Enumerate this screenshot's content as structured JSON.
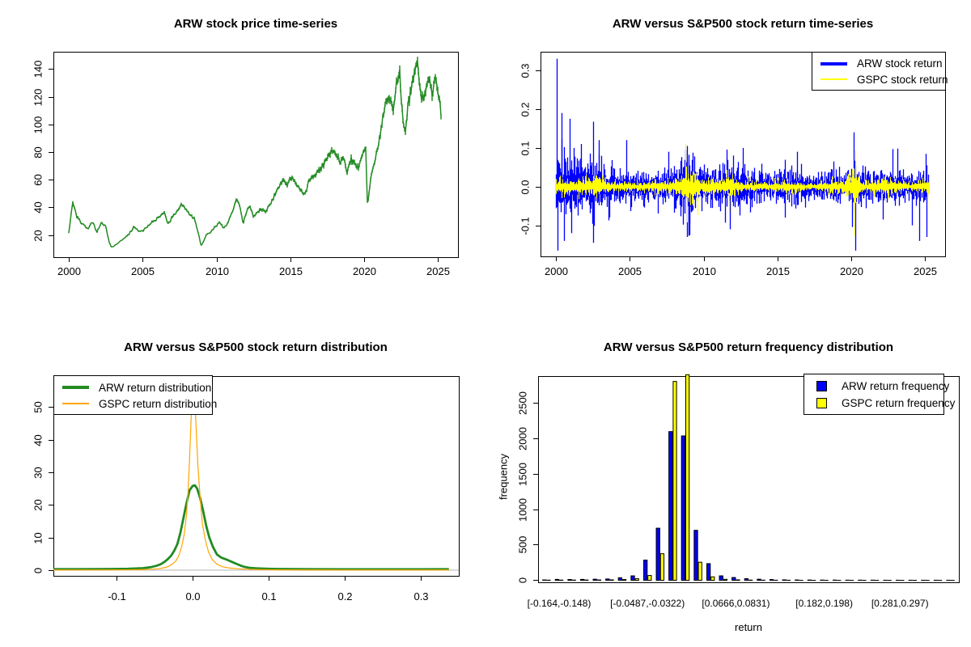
{
  "figure": {
    "background": "#ffffff",
    "rows": 2,
    "cols": 2
  },
  "chart_data": [
    {
      "id": "price",
      "type": "line",
      "title": "ARW stock price time-series",
      "xlabel": "",
      "ylabel": "",
      "x_ticks": [
        2000,
        2005,
        2010,
        2015,
        2020,
        2025
      ],
      "x_tick_labels": [
        "2000",
        "2005",
        "2010",
        "2015",
        "2020",
        "2025"
      ],
      "y_ticks": [
        20,
        40,
        60,
        80,
        100,
        120,
        140
      ],
      "y_tick_labels": [
        "20",
        "40",
        "60",
        "80",
        "100",
        "120",
        "140"
      ],
      "xlim": [
        1998.95,
        2026.35
      ],
      "ylim": [
        4,
        152.5
      ],
      "grid": false,
      "series": [
        {
          "name": "ARW price",
          "color": "#228B22",
          "seed": 7,
          "noise_rel": 0.028,
          "anchors_x": [
            2000.0,
            2000.25,
            2000.5,
            2000.75,
            2001.0,
            2001.3,
            2001.6,
            2001.9,
            2002.2,
            2002.5,
            2002.75,
            2002.9,
            2003.2,
            2003.5,
            2003.8,
            2004.1,
            2004.4,
            2004.7,
            2005.0,
            2005.3,
            2005.6,
            2005.9,
            2006.2,
            2006.45,
            2006.7,
            2007.0,
            2007.3,
            2007.6,
            2007.9,
            2008.2,
            2008.5,
            2008.8,
            2008.95,
            2009.1,
            2009.3,
            2009.6,
            2009.9,
            2010.2,
            2010.5,
            2010.8,
            2011.1,
            2011.35,
            2011.6,
            2011.8,
            2012.0,
            2012.25,
            2012.5,
            2012.75,
            2013.0,
            2013.3,
            2013.6,
            2013.9,
            2014.2,
            2014.5,
            2014.8,
            2015.1,
            2015.4,
            2015.7,
            2016.0,
            2016.3,
            2016.6,
            2016.9,
            2017.2,
            2017.5,
            2017.8,
            2018.1,
            2018.35,
            2018.6,
            2018.85,
            2019.1,
            2019.35,
            2019.6,
            2019.9,
            2020.1,
            2020.22,
            2020.45,
            2020.7,
            2020.95,
            2021.2,
            2021.45,
            2021.7,
            2021.95,
            2022.2,
            2022.4,
            2022.6,
            2022.8,
            2023.0,
            2023.2,
            2023.45,
            2023.6,
            2023.8,
            2024.0,
            2024.2,
            2024.4,
            2024.6,
            2024.8,
            2025.0,
            2025.2
          ],
          "anchors_y": [
            22,
            44,
            34,
            30,
            27,
            24,
            30,
            22,
            29,
            26,
            14,
            11,
            13,
            16,
            18,
            21,
            26,
            23,
            23,
            26,
            29,
            31,
            34,
            37,
            28,
            33,
            37,
            42,
            39,
            35,
            32,
            20,
            12,
            15,
            20,
            22,
            26,
            29,
            25,
            30,
            38,
            46,
            40,
            28,
            36,
            41,
            33,
            36,
            39,
            37,
            42,
            48,
            55,
            60,
            57,
            62,
            57,
            52,
            50,
            60,
            63,
            66,
            70,
            76,
            81,
            79,
            73,
            77,
            65,
            75,
            72,
            68,
            80,
            84,
            41,
            62,
            72,
            85,
            100,
            115,
            122,
            112,
            130,
            136,
            104,
            96,
            118,
            126,
            140,
            146,
            122,
            118,
            128,
            133,
            120,
            136,
            125,
            108
          ]
        }
      ]
    },
    {
      "id": "returns",
      "type": "line",
      "title": "ARW versus S&P500 stock return time-series",
      "xlabel": "",
      "ylabel": "",
      "x_ticks": [
        2000,
        2005,
        2010,
        2015,
        2020,
        2025
      ],
      "x_tick_labels": [
        "2000",
        "2005",
        "2010",
        "2015",
        "2020",
        "2025"
      ],
      "y_ticks": [
        -0.1,
        0.0,
        0.1,
        0.2,
        0.3
      ],
      "y_tick_labels": [
        "-0.1",
        "0.0",
        "0.1",
        "0.2",
        "0.3"
      ],
      "xlim": [
        1998.95,
        2026.35
      ],
      "ylim": [
        -0.18,
        0.348
      ],
      "grid": false,
      "legend": {
        "position": "topright",
        "entries": [
          {
            "label": "ARW stock return",
            "color": "#0000FF",
            "lw": 4,
            "shape": "line"
          },
          {
            "label": "GSPC stock return",
            "color": "#FFFF00",
            "lw": 2,
            "shape": "line"
          }
        ]
      },
      "series": [
        {
          "name": "ARW stock return",
          "color": "#0000FF",
          "seed": 11,
          "line_width": 1.3,
          "envelope_x": [
            2000,
            2000.5,
            2001,
            2001.5,
            2002,
            2002.5,
            2003,
            2003.5,
            2004,
            2004.5,
            2005,
            2005.5,
            2006,
            2006.5,
            2007,
            2007.5,
            2008,
            2008.5,
            2008.9,
            2009.2,
            2009.5,
            2010,
            2010.5,
            2011,
            2011.5,
            2011.9,
            2012.3,
            2012.8,
            2013.3,
            2013.8,
            2014.3,
            2014.8,
            2015.3,
            2015.8,
            2016.2,
            2016.7,
            2017.2,
            2017.7,
            2018.2,
            2018.7,
            2019.2,
            2019.7,
            2020.2,
            2020.6,
            2021,
            2021.5,
            2022,
            2022.5,
            2023,
            2023.5,
            2024,
            2024.5,
            2025,
            2025.2
          ],
          "envelope_y": [
            0.052,
            0.055,
            0.05,
            0.045,
            0.045,
            0.05,
            0.04,
            0.032,
            0.028,
            0.03,
            0.024,
            0.022,
            0.024,
            0.022,
            0.022,
            0.028,
            0.035,
            0.045,
            0.06,
            0.055,
            0.04,
            0.032,
            0.035,
            0.03,
            0.035,
            0.042,
            0.035,
            0.03,
            0.026,
            0.024,
            0.022,
            0.024,
            0.026,
            0.028,
            0.032,
            0.026,
            0.02,
            0.02,
            0.028,
            0.03,
            0.026,
            0.022,
            0.045,
            0.032,
            0.026,
            0.024,
            0.028,
            0.032,
            0.028,
            0.024,
            0.022,
            0.024,
            0.026,
            0.028
          ],
          "spikes": [
            [
              2000.07,
              0.33
            ],
            [
              2000.12,
              -0.165
            ],
            [
              2000.4,
              0.19
            ],
            [
              2000.55,
              -0.14
            ],
            [
              2000.9,
              0.175
            ],
            [
              2001.05,
              -0.12
            ],
            [
              2001.7,
              0.11
            ],
            [
              2002.5,
              -0.145
            ],
            [
              2002.9,
              0.12
            ],
            [
              2004.75,
              0.12
            ],
            [
              2007.6,
              0.09
            ],
            [
              2008.75,
              0.095
            ],
            [
              2008.85,
              -0.13
            ],
            [
              2009.05,
              -0.125
            ],
            [
              2011.8,
              -0.11
            ],
            [
              2012.0,
              0.08
            ],
            [
              2015.5,
              -0.08
            ],
            [
              2016.3,
              0.09
            ],
            [
              2018.8,
              0.065
            ],
            [
              2020.18,
              0.14
            ],
            [
              2020.28,
              -0.165
            ],
            [
              2023.1,
              0.098
            ],
            [
              2024.1,
              -0.1
            ],
            [
              2024.6,
              -0.14
            ],
            [
              2025.1,
              -0.13
            ]
          ]
        },
        {
          "name": "GSPC stock return",
          "color": "#FFFF00",
          "seed": 23,
          "line_width": 1.0,
          "envelope_x": [
            2000,
            2001,
            2002,
            2002.8,
            2003.5,
            2004,
            2005,
            2006,
            2007,
            2007.8,
            2008.5,
            2008.9,
            2009.3,
            2010,
            2010.5,
            2011,
            2011.8,
            2012.5,
            2013,
            2014,
            2015,
            2015.7,
            2016,
            2017,
            2018,
            2018.9,
            2019.5,
            2020.2,
            2020.6,
            2021,
            2022,
            2022.5,
            2023,
            2024,
            2024.8,
            2025.2
          ],
          "envelope_y": [
            0.014,
            0.014,
            0.016,
            0.017,
            0.012,
            0.009,
            0.008,
            0.008,
            0.01,
            0.013,
            0.02,
            0.035,
            0.026,
            0.012,
            0.014,
            0.012,
            0.018,
            0.01,
            0.008,
            0.007,
            0.01,
            0.012,
            0.01,
            0.006,
            0.01,
            0.013,
            0.009,
            0.032,
            0.014,
            0.009,
            0.014,
            0.015,
            0.01,
            0.008,
            0.011,
            0.012
          ],
          "spikes": [
            [
              2008.78,
              0.11
            ],
            [
              2008.88,
              -0.092
            ],
            [
              2011.85,
              -0.067
            ],
            [
              2018.9,
              0.05
            ],
            [
              2020.22,
              -0.127
            ],
            [
              2020.26,
              0.093
            ],
            [
              2022.3,
              -0.04
            ],
            [
              2025.15,
              -0.058
            ]
          ]
        }
      ]
    },
    {
      "id": "density",
      "type": "line",
      "title": "ARW versus S&P500 stock return distribution",
      "xlabel": "",
      "ylabel": "",
      "x_ticks": [
        -0.1,
        0.0,
        0.1,
        0.2,
        0.3
      ],
      "x_tick_labels": [
        "-0.1",
        "0.0",
        "0.1",
        "0.2",
        "0.3"
      ],
      "y_ticks": [
        0,
        10,
        20,
        30,
        40,
        50
      ],
      "y_tick_labels": [
        "0",
        "10",
        "20",
        "30",
        "40",
        "50"
      ],
      "xlim": [
        -0.183,
        0.35
      ],
      "ylim": [
        -1.75,
        59.5
      ],
      "grid": false,
      "zero_line_color": "#C8C8C8",
      "legend": {
        "position": "topleft",
        "entries": [
          {
            "label": "ARW return distribution",
            "color": "#228B22",
            "lw": 4,
            "shape": "line"
          },
          {
            "label": "GSPC return distribution",
            "color": "#FFA500",
            "lw": 2,
            "shape": "line"
          }
        ]
      },
      "series": [
        {
          "name": "ARW return distribution",
          "color": "#228B22",
          "line_width": 2.8,
          "x": [
            -0.183,
            -0.15,
            -0.12,
            -0.1,
            -0.085,
            -0.075,
            -0.065,
            -0.055,
            -0.048,
            -0.042,
            -0.037,
            -0.032,
            -0.028,
            -0.024,
            -0.02,
            -0.016,
            -0.012,
            -0.008,
            -0.004,
            0.0,
            0.003,
            0.006,
            0.01,
            0.014,
            0.018,
            0.022,
            0.027,
            0.032,
            0.038,
            0.044,
            0.05,
            0.056,
            0.062,
            0.068,
            0.075,
            0.085,
            0.095,
            0.11,
            0.15,
            0.2,
            0.25,
            0.3,
            0.337
          ],
          "y": [
            0.3,
            0.3,
            0.32,
            0.35,
            0.4,
            0.5,
            0.6,
            0.9,
            1.3,
            1.8,
            2.5,
            3.5,
            4.5,
            6,
            8,
            11.5,
            16,
            20.5,
            24.5,
            25.8,
            26,
            25,
            22,
            18,
            13.5,
            10,
            7,
            4.8,
            3.8,
            3.3,
            2.7,
            2.1,
            1.5,
            1.0,
            0.7,
            0.55,
            0.45,
            0.35,
            0.28,
            0.26,
            0.26,
            0.27,
            0.3
          ]
        },
        {
          "name": "GSPC return distribution",
          "color": "#FFA500",
          "line_width": 1.2,
          "x": [
            -0.183,
            -0.12,
            -0.09,
            -0.07,
            -0.055,
            -0.045,
            -0.038,
            -0.032,
            -0.027,
            -0.022,
            -0.018,
            -0.014,
            -0.011,
            -0.008,
            -0.006,
            -0.004,
            -0.002,
            0.0,
            0.001,
            0.003,
            0.005,
            0.007,
            0.01,
            0.013,
            0.017,
            0.021,
            0.026,
            0.032,
            0.04,
            0.05,
            0.06,
            0.075,
            0.09,
            0.12,
            0.2,
            0.337
          ],
          "y": [
            0.05,
            0.06,
            0.1,
            0.15,
            0.25,
            0.4,
            0.7,
            1.1,
            1.8,
            2.8,
            4.5,
            7.5,
            11,
            17,
            24,
            34,
            46,
            55,
            56,
            52,
            42,
            32,
            22,
            14,
            9,
            5.5,
            3.2,
            1.8,
            1.0,
            0.6,
            0.4,
            0.25,
            0.15,
            0.08,
            0.05,
            0.05
          ]
        }
      ]
    },
    {
      "id": "histogram",
      "type": "bar",
      "title": "ARW versus S&P500 return frequency distribution",
      "xlabel": "return",
      "ylabel": "frequency",
      "y_ticks": [
        0,
        500,
        1000,
        1500,
        2000,
        2500
      ],
      "y_tick_labels": [
        "0",
        "500",
        "1000",
        "1500",
        "2000",
        "2500"
      ],
      "ylim": [
        0,
        2880
      ],
      "grid": false,
      "n_bins": 33,
      "bin_labels": [
        {
          "index": 1,
          "label": "[-0.164,-0.148)"
        },
        {
          "index": 8,
          "label": "[-0.0487,-0.0322)"
        },
        {
          "index": 15,
          "label": "[0.0666,0.0831)"
        },
        {
          "index": 22,
          "label": "[0.182,0.198)"
        },
        {
          "index": 28,
          "label": "[0.281,0.297)"
        }
      ],
      "legend": {
        "position": "topright",
        "entries": [
          {
            "label": "ARW return frequency",
            "color": "#0000FF",
            "shape": "square"
          },
          {
            "label": "GSPC return frequency",
            "color": "#FFFF00",
            "shape": "square"
          }
        ]
      },
      "series": [
        {
          "name": "ARW return frequency",
          "color": "#0000FF",
          "values": [
            5,
            12,
            10,
            12,
            14,
            18,
            35,
            62,
            285,
            735,
            2100,
            2040,
            705,
            235,
            62,
            38,
            22,
            14,
            9,
            6,
            5,
            4,
            3,
            3,
            2,
            2,
            2,
            1,
            1,
            1,
            1,
            1,
            1
          ]
        },
        {
          "name": "GSPC return frequency",
          "color": "#FFFF00",
          "values": [
            2,
            3,
            3,
            4,
            5,
            6,
            10,
            22,
            68,
            375,
            2810,
            2905,
            255,
            48,
            14,
            6,
            3,
            2,
            1,
            1,
            0,
            0,
            0,
            0,
            0,
            0,
            0,
            0,
            0,
            0,
            0,
            0,
            0
          ]
        }
      ]
    }
  ]
}
